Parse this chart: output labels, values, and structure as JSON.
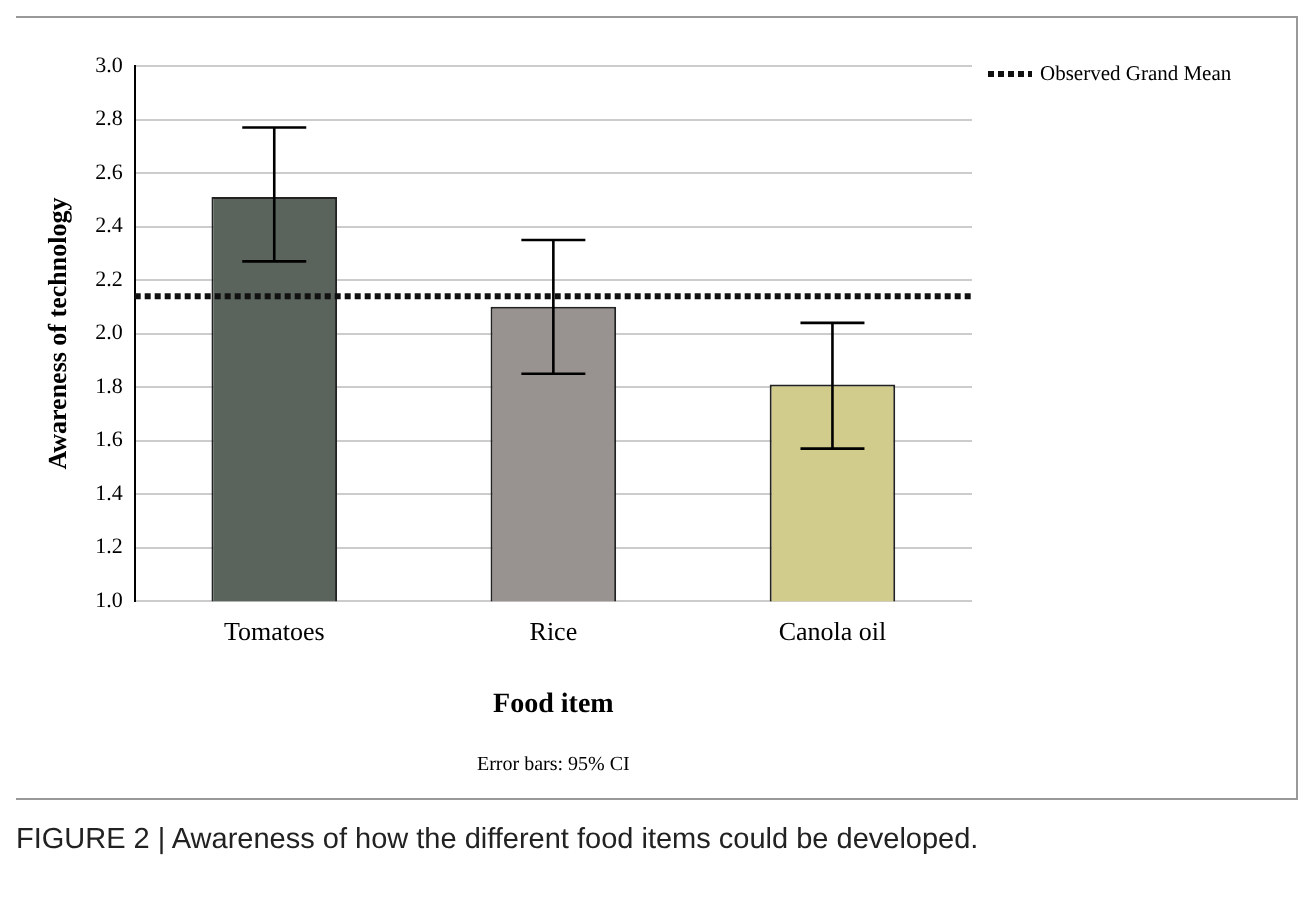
{
  "chart_data": {
    "type": "bar",
    "xlabel": "Food item",
    "ylabel": "Awareness of technology",
    "categories": [
      "Tomatoes",
      "Rice",
      "Canola oil"
    ],
    "values": [
      2.51,
      2.1,
      1.81
    ],
    "colors": [
      "#5a645d",
      "#989291",
      "#d2cc8c"
    ],
    "errors": [
      [
        2.27,
        2.77
      ],
      [
        1.85,
        2.35
      ],
      [
        1.57,
        2.04
      ]
    ],
    "ylim": [
      1.0,
      3.0
    ],
    "yticks": [
      {
        "value": 1.0,
        "label": "1.0"
      },
      {
        "value": 1.2,
        "label": "1.2"
      },
      {
        "value": 1.4,
        "label": "1.4"
      },
      {
        "value": 1.6,
        "label": "1.6"
      },
      {
        "value": 1.8,
        "label": "1.8"
      },
      {
        "value": 2.0,
        "label": "2.0"
      },
      {
        "value": 2.2,
        "label": "2.2"
      },
      {
        "value": 2.4,
        "label": "2.4"
      },
      {
        "value": 2.6,
        "label": "2.6"
      },
      {
        "value": 2.8,
        "label": "2.8"
      },
      {
        "value": 3.0,
        "label": "3.0"
      }
    ],
    "grid": "y",
    "legend": "top right",
    "ref_lines": [
      {
        "axis": "y",
        "value": 2.14,
        "label": "Observed Grand Mean",
        "color": "#111111",
        "line_style": "dotted"
      }
    ],
    "annotations": [
      "Error bars: 95% CI",
      "FIGURE 2 | Awareness of how the different food items could be developed."
    ]
  }
}
